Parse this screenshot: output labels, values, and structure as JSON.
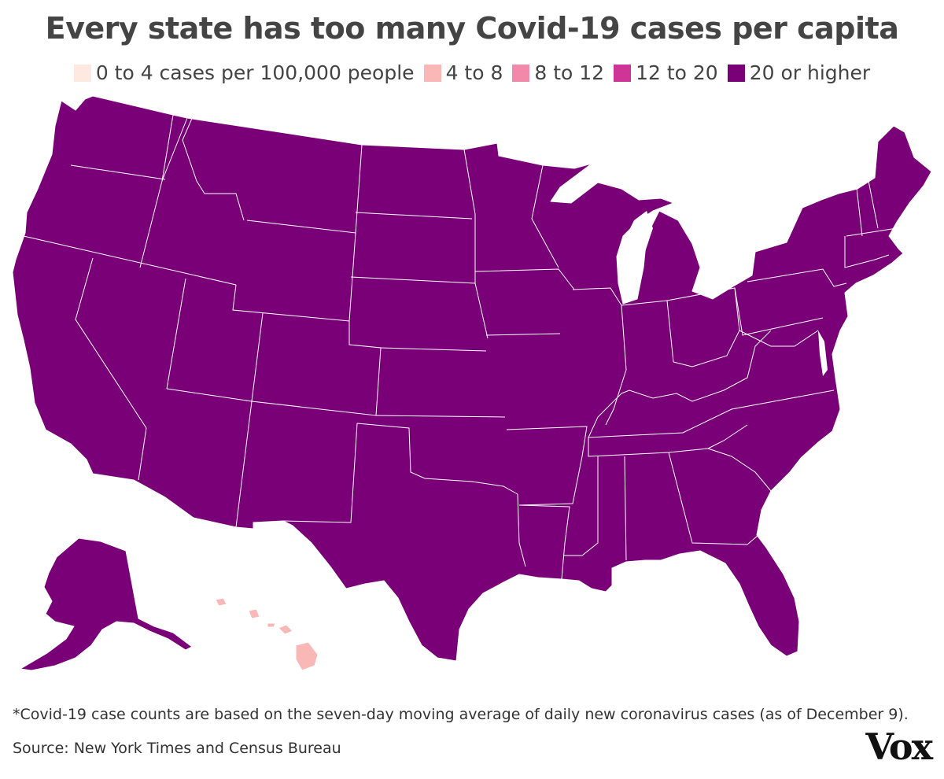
{
  "title": "Every state has too many Covid-19 cases per capita",
  "legend": [
    {
      "label": "0 to 4 cases per 100,000 people",
      "color": "#fde9df"
    },
    {
      "label": "4 to 8",
      "color": "#f9b8b6"
    },
    {
      "label": "8 to 12",
      "color": "#f288aa"
    },
    {
      "label": "12 to 20",
      "color": "#cf3597"
    },
    {
      "label": "20 or higher",
      "color": "#790077"
    }
  ],
  "map_data": {
    "lower_48_category": "20 or higher",
    "alaska_category": "20 or higher",
    "hawaii_category": "4 to 8"
  },
  "footnote": "*Covid-19 case counts are based on the seven-day moving average of daily new coronavirus cases (as of December 9).",
  "source": "Source: New York Times and Census Bureau",
  "logo": "Vox"
}
